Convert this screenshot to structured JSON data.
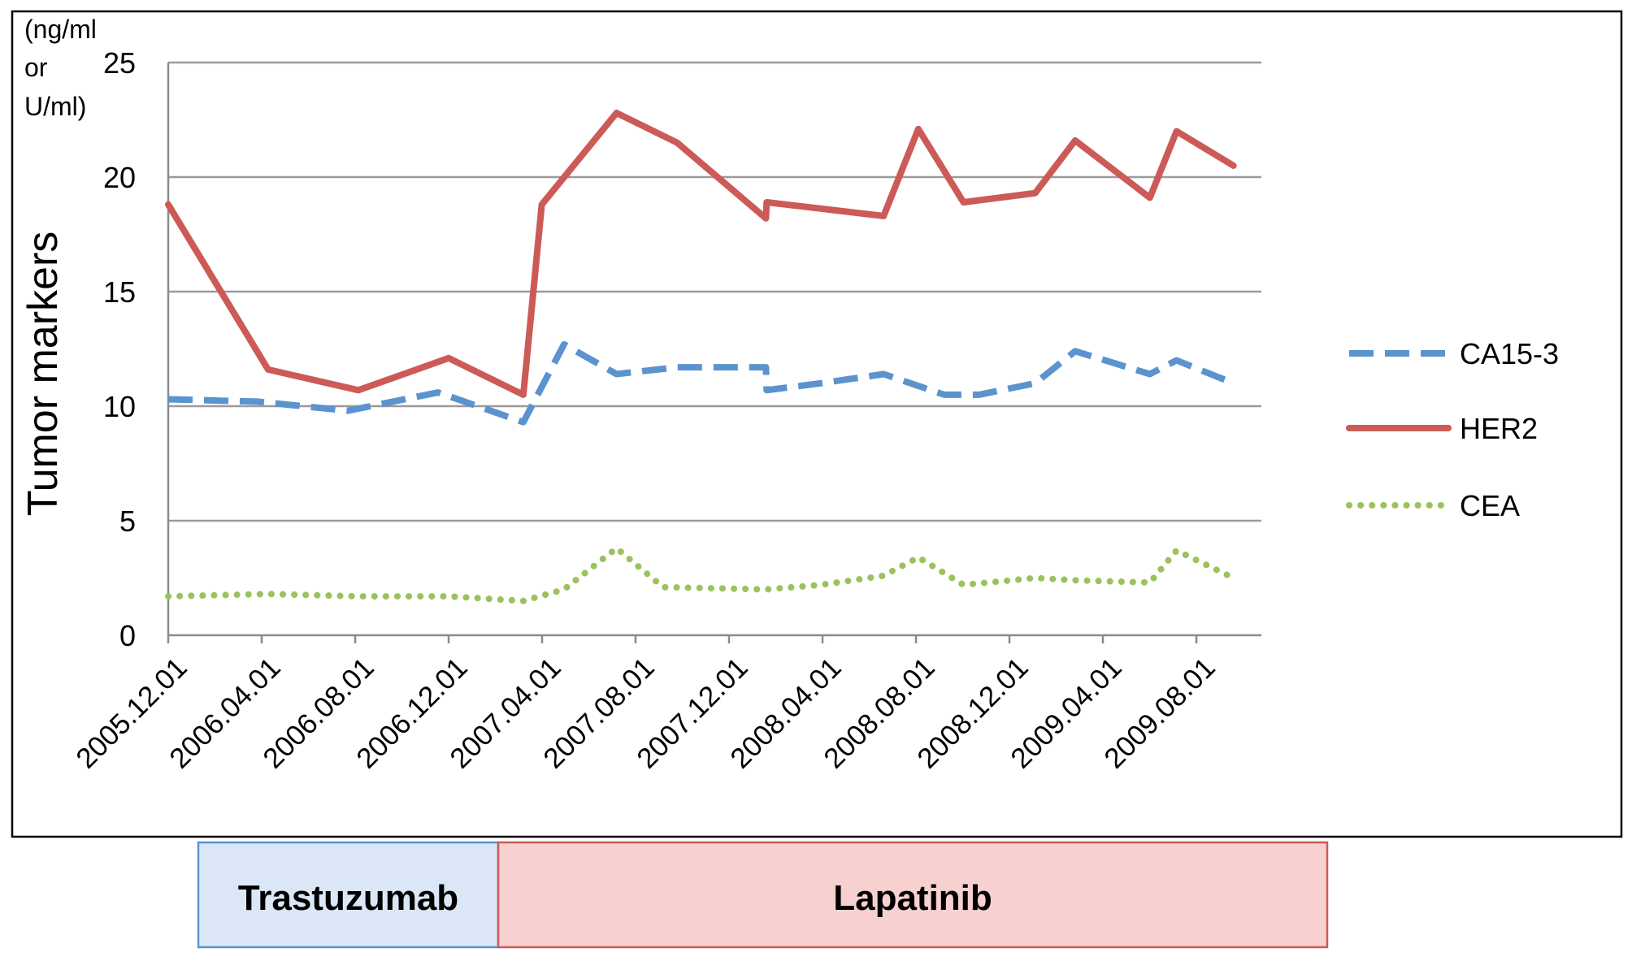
{
  "chart_data": {
    "type": "line",
    "ylabel": "Tumor markers",
    "unit_label_lines": [
      "(ng/ml",
      "or",
      "U/ml)"
    ],
    "ylim": [
      0,
      25
    ],
    "yticks": [
      0,
      5,
      10,
      15,
      20,
      25
    ],
    "grid": true,
    "legend_position": "right",
    "x_tick_labels": [
      "2005.12.01",
      "2006.04.01",
      "2006.08.01",
      "2006.12.01",
      "2007.04.01",
      "2007.08.01",
      "2007.12.01",
      "2008.04.01",
      "2008.08.01",
      "2008.12.01",
      "2009.04.01",
      "2009.08.01"
    ],
    "series": [
      {
        "name": "CA15-3",
        "color": "#5b93cf",
        "style": "dashed",
        "points": [
          [
            "2005-12-01",
            10.3
          ],
          [
            "2006-04-01",
            10.2
          ],
          [
            "2006-08-01",
            9.8
          ],
          [
            "2006-12-01",
            10.6
          ],
          [
            "2007-03-26",
            9.3
          ],
          [
            "2007-05-20",
            12.7
          ],
          [
            "2007-07-30",
            11.4
          ],
          [
            "2007-10-20",
            11.7
          ],
          [
            "2008-02-17",
            11.7
          ],
          [
            "2008-02-18",
            10.7
          ],
          [
            "2008-05-01",
            11.0
          ],
          [
            "2008-07-25",
            11.4
          ],
          [
            "2008-10-15",
            10.5
          ],
          [
            "2008-12-01",
            10.5
          ],
          [
            "2009-02-15",
            11.0
          ],
          [
            "2009-04-10",
            12.4
          ],
          [
            "2009-07-20",
            11.4
          ],
          [
            "2009-08-25",
            12.0
          ],
          [
            "2009-11-10",
            11.0
          ]
        ]
      },
      {
        "name": "HER2",
        "color": "#cc5a57",
        "style": "solid",
        "points": [
          [
            "2005-12-01",
            18.8
          ],
          [
            "2006-04-15",
            11.6
          ],
          [
            "2006-08-15",
            10.7
          ],
          [
            "2006-12-15",
            12.1
          ],
          [
            "2007-03-26",
            10.5
          ],
          [
            "2007-04-20",
            18.8
          ],
          [
            "2007-07-30",
            22.8
          ],
          [
            "2007-10-20",
            21.5
          ],
          [
            "2008-02-17",
            18.2
          ],
          [
            "2008-02-18",
            18.9
          ],
          [
            "2008-07-25",
            18.3
          ],
          [
            "2008-09-10",
            22.1
          ],
          [
            "2008-11-10",
            18.9
          ],
          [
            "2009-02-15",
            19.3
          ],
          [
            "2009-04-10",
            21.6
          ],
          [
            "2009-07-20",
            19.1
          ],
          [
            "2009-08-25",
            22.0
          ],
          [
            "2009-11-10",
            20.5
          ]
        ]
      },
      {
        "name": "CEA",
        "color": "#9bc25c",
        "style": "dotted",
        "points": [
          [
            "2005-12-01",
            1.7
          ],
          [
            "2006-04-15",
            1.8
          ],
          [
            "2006-08-15",
            1.7
          ],
          [
            "2006-12-15",
            1.7
          ],
          [
            "2007-03-26",
            1.5
          ],
          [
            "2007-05-20",
            2.0
          ],
          [
            "2007-07-30",
            3.8
          ],
          [
            "2007-10-01",
            2.1
          ],
          [
            "2008-02-17",
            2.0
          ],
          [
            "2008-05-01",
            2.2
          ],
          [
            "2008-07-25",
            2.6
          ],
          [
            "2008-09-10",
            3.4
          ],
          [
            "2008-11-10",
            2.2
          ],
          [
            "2009-02-15",
            2.5
          ],
          [
            "2009-04-10",
            2.4
          ],
          [
            "2009-07-20",
            2.3
          ],
          [
            "2009-08-25",
            3.7
          ],
          [
            "2009-11-10",
            2.5
          ]
        ]
      }
    ]
  },
  "treatment_bars": [
    {
      "label": "Trastuzumab",
      "start": "2005-12-01",
      "end": "2007-04-01",
      "fill": "#dbe7f6",
      "border": "#5b93cf"
    },
    {
      "label": "Lapatinib",
      "start": "2007-04-01",
      "end": "2010-01-01",
      "fill": "#f7d0d0",
      "border": "#cc5a57"
    }
  ]
}
